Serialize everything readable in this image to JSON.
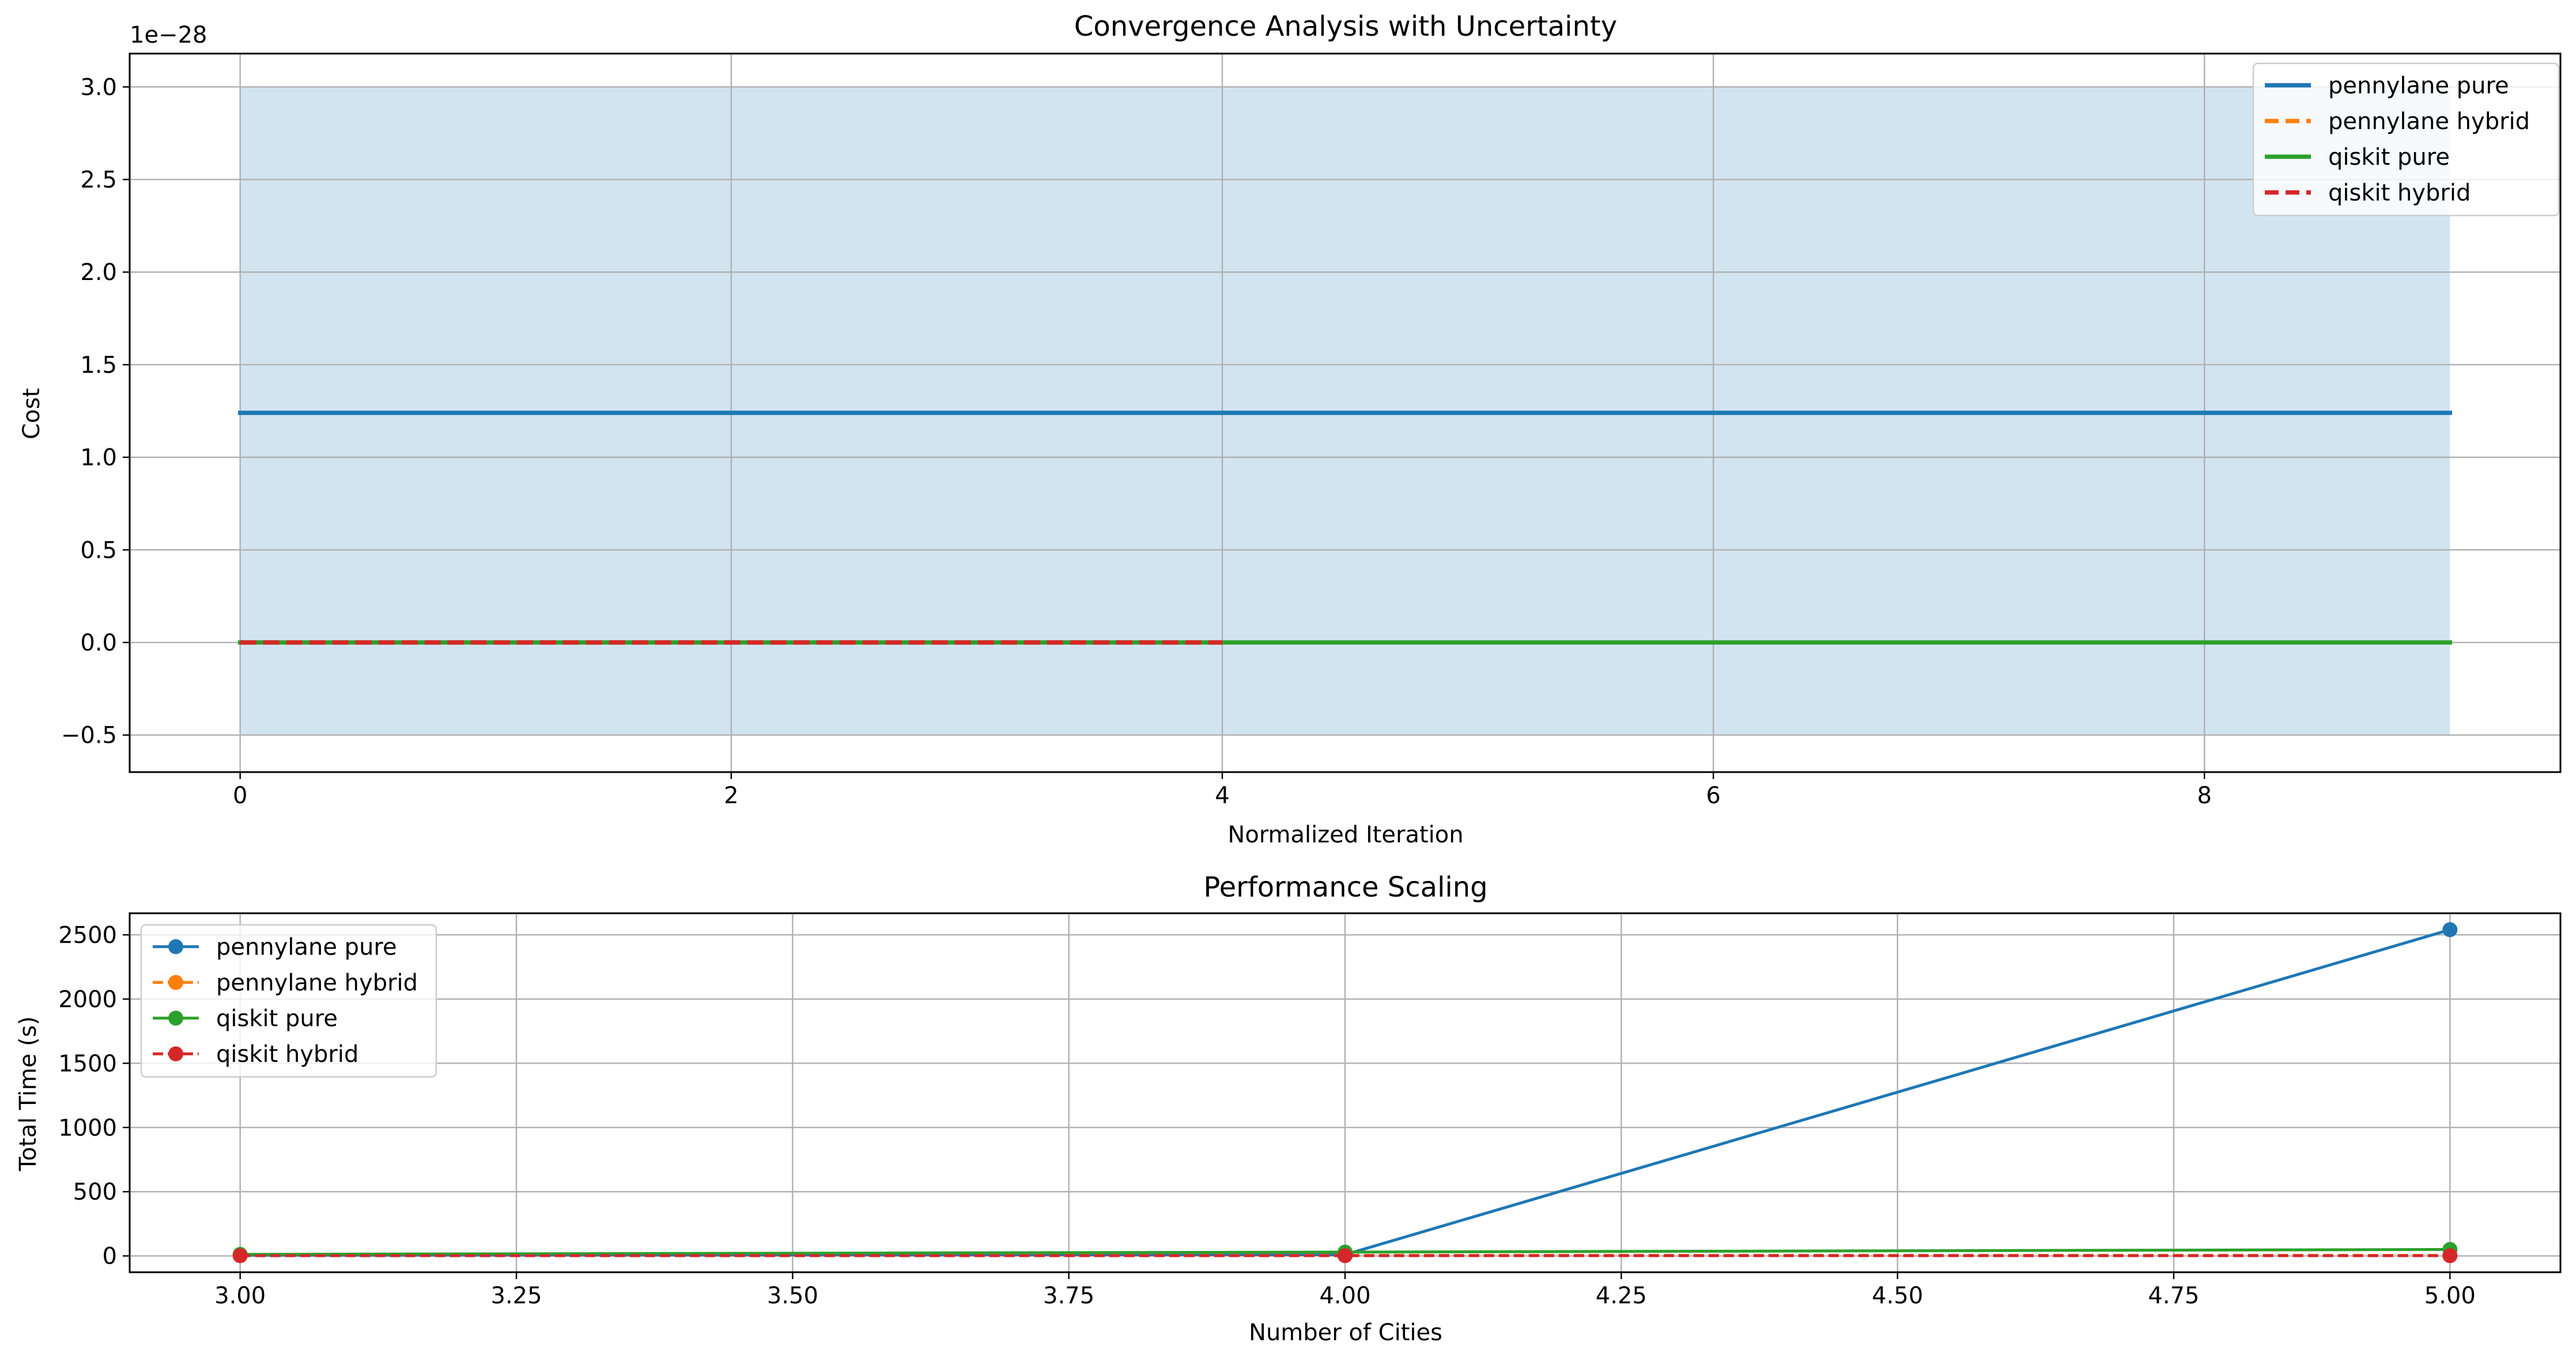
{
  "chart_data": [
    {
      "type": "line",
      "title": "Convergence Analysis with Uncertainty",
      "xlabel": "Normalized Iteration",
      "ylabel": "Cost",
      "offset_text": "1e−28",
      "xlim": [
        -0.45,
        9.45
      ],
      "ylim": [
        -0.7,
        3.18
      ],
      "x_ticks": [
        0,
        2,
        4,
        6,
        8
      ],
      "x_tick_labels": [
        "0",
        "2",
        "4",
        "6",
        "8"
      ],
      "y_ticks": [
        -0.5,
        0.0,
        0.5,
        1.0,
        1.5,
        2.0,
        2.5,
        3.0
      ],
      "y_tick_labels": [
        "−0.5",
        "0.0",
        "0.5",
        "1.0",
        "1.5",
        "2.0",
        "2.5",
        "3.0"
      ],
      "grid": true,
      "legend_position": "upper right",
      "uncertainty_band": {
        "x": [
          0,
          9
        ],
        "lower": -0.5,
        "upper": 3.0,
        "color": "#1f77b4"
      },
      "series": [
        {
          "name": "pennylane pure",
          "x": [
            0,
            9
          ],
          "y": [
            1.24,
            1.24
          ],
          "color": "#1f77b4",
          "dash": "solid"
        },
        {
          "name": "pennylane hybrid",
          "x": [
            0,
            4
          ],
          "y": [
            0,
            0
          ],
          "color": "#ff7f0e",
          "dash": "dashed"
        },
        {
          "name": "qiskit pure",
          "x": [
            0,
            9
          ],
          "y": [
            0,
            0
          ],
          "color": "#2ca02c",
          "dash": "solid"
        },
        {
          "name": "qiskit hybrid",
          "x": [
            0,
            4
          ],
          "y": [
            0,
            0
          ],
          "color": "#d62728",
          "dash": "dashed"
        }
      ]
    },
    {
      "type": "line",
      "title": "Performance Scaling",
      "xlabel": "Number of Cities",
      "ylabel": "Total Time (s)",
      "xlim": [
        2.9,
        5.1
      ],
      "ylim": [
        -127,
        2668
      ],
      "x_ticks": [
        3.0,
        3.25,
        3.5,
        3.75,
        4.0,
        4.25,
        4.5,
        4.75,
        5.0
      ],
      "x_tick_labels": [
        "3.00",
        "3.25",
        "3.50",
        "3.75",
        "4.00",
        "4.25",
        "4.50",
        "4.75",
        "5.00"
      ],
      "y_ticks": [
        0,
        500,
        1000,
        1500,
        2000,
        2500
      ],
      "y_tick_labels": [
        "0",
        "500",
        "1000",
        "1500",
        "2000",
        "2500"
      ],
      "grid": true,
      "legend_position": "upper left",
      "series": [
        {
          "name": "pennylane pure",
          "x": [
            3,
            4,
            5
          ],
          "y": [
            5,
            10,
            2540
          ],
          "color": "#1f77b4",
          "dash": "solid"
        },
        {
          "name": "pennylane hybrid",
          "x": [
            3,
            4,
            5
          ],
          "y": [
            3,
            4,
            4
          ],
          "color": "#ff7f0e",
          "dash": "dashed"
        },
        {
          "name": "qiskit pure",
          "x": [
            3,
            4,
            5
          ],
          "y": [
            12,
            30,
            50
          ],
          "color": "#2ca02c",
          "dash": "solid"
        },
        {
          "name": "qiskit hybrid",
          "x": [
            3,
            4,
            5
          ],
          "y": [
            2,
            2,
            2
          ],
          "color": "#d62728",
          "dash": "dashed"
        }
      ]
    }
  ]
}
